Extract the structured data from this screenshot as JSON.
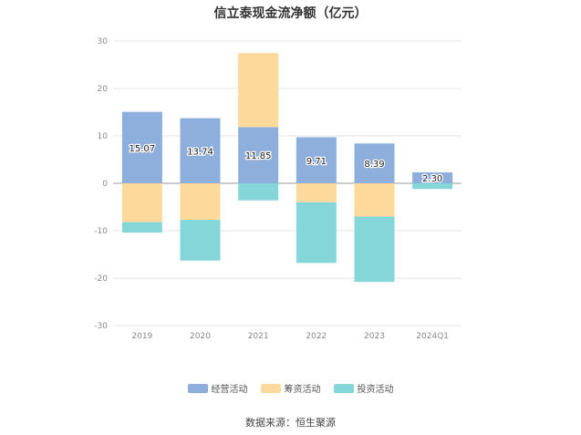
{
  "title": "信立泰现金流净额（亿元）",
  "source": "数据来源：恒生聚源",
  "chart_data": {
    "type": "bar",
    "stacked": true,
    "title": "信立泰现金流净额（亿元）",
    "categories": [
      "2019",
      "2020",
      "2021",
      "2022",
      "2023",
      "2024Q1"
    ],
    "ylim": [
      -30,
      30
    ],
    "yticks": [
      30,
      20,
      10,
      0,
      -10,
      -20,
      -30
    ],
    "grid": true,
    "legend_position": "bottom",
    "series": [
      {
        "name": "经营活动",
        "color": "#8eaedb",
        "values": [
          15.07,
          13.74,
          11.85,
          9.71,
          8.39,
          2.3
        ],
        "labels": [
          "15.07",
          "13.74",
          "11.85",
          "9.71",
          "8.39",
          "2.30"
        ]
      },
      {
        "name": "筹资活动",
        "color": "#fdd99b",
        "values": [
          -8.2,
          -7.7,
          15.6,
          -4.0,
          -7.0,
          0.0
        ]
      },
      {
        "name": "投资活动",
        "color": "#85d6d9",
        "values": [
          -2.2,
          -8.6,
          -3.6,
          -12.8,
          -13.8,
          -1.2
        ]
      }
    ]
  }
}
